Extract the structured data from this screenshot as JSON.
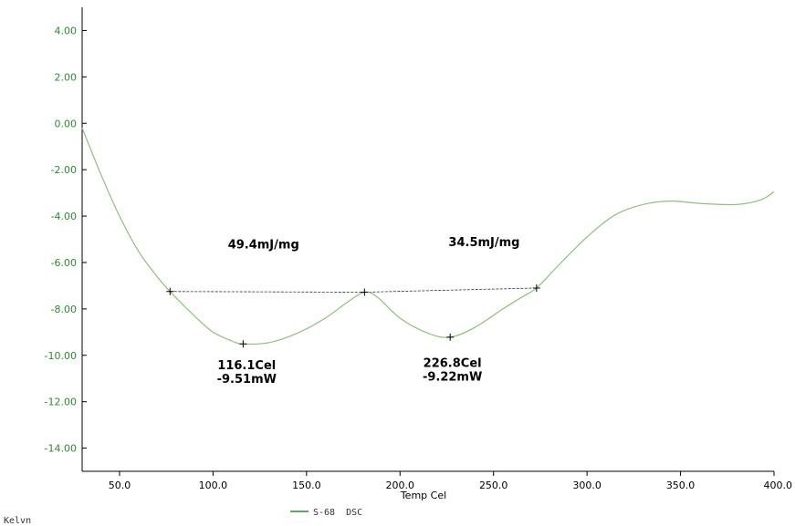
{
  "chart_data": {
    "type": "line",
    "xlabel": "Temp Cel",
    "ylabel": "",
    "xlim": [
      30,
      400
    ],
    "ylim": [
      -15,
      5
    ],
    "x_ticks": [
      "50.0",
      "100.0",
      "150.0",
      "200.0",
      "250.0",
      "300.0",
      "350.0",
      "400.0"
    ],
    "x_tick_values": [
      50,
      100,
      150,
      200,
      250,
      300,
      350,
      400
    ],
    "y_ticks": [
      "4.00",
      "2.00",
      "0.00",
      "-2.00",
      "-4.00",
      "-6.00",
      "-8.00",
      "-10.00",
      "-12.00",
      "-14.00"
    ],
    "y_tick_values": [
      4,
      2,
      0,
      -2,
      -4,
      -6,
      -8,
      -10,
      -12,
      -14
    ],
    "grid": false,
    "series": [
      {
        "name": "S-68 DSC",
        "color": "#8fbf7f",
        "x": [
          30,
          40,
          50,
          60,
          70,
          77,
          90,
          100,
          110,
          116.1,
          130,
          145,
          160,
          172,
          181,
          188,
          200,
          215,
          226.8,
          240,
          255,
          265,
          273,
          285,
          300,
          315,
          330,
          345,
          360,
          380,
          393,
          400
        ],
        "y": [
          -0.2,
          -2.2,
          -4.0,
          -5.5,
          -6.6,
          -7.25,
          -8.3,
          -9.0,
          -9.38,
          -9.51,
          -9.45,
          -9.05,
          -8.4,
          -7.7,
          -7.28,
          -7.5,
          -8.4,
          -9.05,
          -9.22,
          -8.8,
          -8.0,
          -7.5,
          -7.1,
          -6.1,
          -4.9,
          -3.95,
          -3.5,
          -3.35,
          -3.45,
          -3.5,
          -3.3,
          -2.95
        ]
      }
    ],
    "baselines": [
      {
        "x": [
          77,
          181
        ],
        "y": [
          -7.25,
          -7.28
        ]
      },
      {
        "x": [
          181,
          273
        ],
        "y": [
          -7.28,
          -7.1
        ]
      }
    ],
    "markers": [
      {
        "x": 77,
        "y": -7.25
      },
      {
        "x": 116.1,
        "y": -9.51
      },
      {
        "x": 181,
        "y": -7.28
      },
      {
        "x": 226.8,
        "y": -9.22
      },
      {
        "x": 273,
        "y": -7.1
      }
    ],
    "annotations": [
      {
        "lines": [
          "49.4mJ/mg"
        ],
        "x": 127,
        "y": -5.4
      },
      {
        "lines": [
          "34.5mJ/mg"
        ],
        "x": 245,
        "y": -5.3
      },
      {
        "lines": [
          "116.1Cel",
          "-9.51mW"
        ],
        "x": 118,
        "y": -10.6
      },
      {
        "lines": [
          "226.8Cel",
          "-9.22mW"
        ],
        "x": 228,
        "y": -10.5
      }
    ],
    "legend": {
      "position": "bottom-center",
      "label": "S-68  DSC"
    }
  },
  "footer": {
    "units_label": "Kelvn"
  },
  "colors": {
    "axis": "#000000",
    "ytick_text": "#2e8b2e",
    "curve": "#8fbf7f",
    "baseline": "#333333"
  }
}
